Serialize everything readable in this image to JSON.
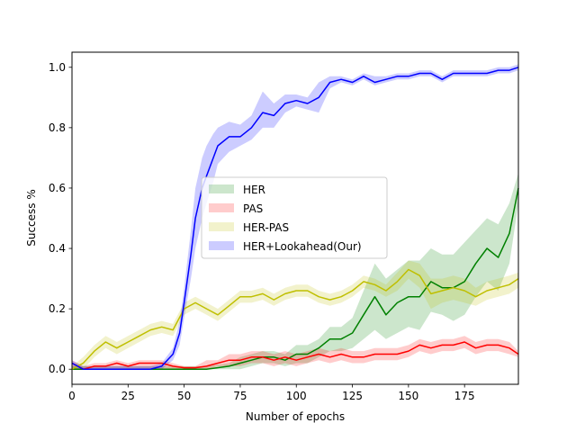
{
  "chart_data": {
    "type": "line",
    "title": "",
    "xlabel": "Number of epochs",
    "ylabel": "Success %",
    "xlim": [
      0,
      199
    ],
    "ylim": [
      -0.05,
      1.05
    ],
    "xticks": [
      0,
      25,
      50,
      75,
      100,
      125,
      150,
      175
    ],
    "yticks": [
      0.0,
      0.2,
      0.4,
      0.6,
      0.8,
      1.0
    ],
    "xtick_labels": [
      "0",
      "25",
      "50",
      "75",
      "100",
      "125",
      "150",
      "175"
    ],
    "ytick_labels": [
      "0.0",
      "0.2",
      "0.4",
      "0.6",
      "0.8",
      "1.0"
    ],
    "grid": false,
    "legend_placement": "center",
    "series": [
      {
        "name": "HER",
        "color": "#008000",
        "x": [
          0,
          5,
          10,
          20,
          30,
          40,
          50,
          60,
          70,
          75,
          80,
          85,
          90,
          95,
          100,
          105,
          110,
          115,
          120,
          125,
          130,
          135,
          140,
          145,
          150,
          155,
          160,
          165,
          170,
          175,
          180,
          185,
          190,
          195,
          199
        ],
        "values": [
          0.0,
          0.0,
          0.0,
          0.0,
          0.0,
          0.0,
          0.0,
          0.0,
          0.01,
          0.02,
          0.03,
          0.04,
          0.04,
          0.03,
          0.05,
          0.05,
          0.07,
          0.1,
          0.1,
          0.12,
          0.18,
          0.24,
          0.18,
          0.22,
          0.24,
          0.24,
          0.29,
          0.27,
          0.27,
          0.29,
          0.35,
          0.4,
          0.37,
          0.45,
          0.6
        ],
        "lower": [
          0.0,
          0.0,
          0.0,
          0.0,
          0.0,
          0.0,
          0.0,
          0.0,
          0.0,
          0.0,
          0.01,
          0.02,
          0.02,
          0.01,
          0.02,
          0.02,
          0.04,
          0.06,
          0.06,
          0.07,
          0.1,
          0.13,
          0.1,
          0.12,
          0.14,
          0.13,
          0.19,
          0.18,
          0.16,
          0.18,
          0.24,
          0.29,
          0.26,
          0.35,
          0.55
        ],
        "upper": [
          0.01,
          0.01,
          0.01,
          0.01,
          0.01,
          0.01,
          0.01,
          0.01,
          0.02,
          0.04,
          0.05,
          0.06,
          0.06,
          0.05,
          0.08,
          0.08,
          0.1,
          0.14,
          0.14,
          0.17,
          0.26,
          0.35,
          0.3,
          0.33,
          0.36,
          0.36,
          0.4,
          0.38,
          0.38,
          0.42,
          0.46,
          0.5,
          0.48,
          0.55,
          0.65
        ]
      },
      {
        "name": "PAS",
        "color": "#ff0000",
        "x": [
          0,
          5,
          10,
          15,
          20,
          25,
          30,
          35,
          40,
          45,
          50,
          55,
          60,
          65,
          70,
          75,
          80,
          85,
          90,
          95,
          100,
          105,
          110,
          115,
          120,
          125,
          130,
          135,
          140,
          145,
          150,
          155,
          160,
          165,
          170,
          175,
          180,
          185,
          190,
          195,
          199
        ],
        "values": [
          0.02,
          0.0,
          0.01,
          0.01,
          0.02,
          0.01,
          0.02,
          0.02,
          0.02,
          0.01,
          0.005,
          0.005,
          0.01,
          0.02,
          0.03,
          0.03,
          0.04,
          0.04,
          0.03,
          0.04,
          0.03,
          0.04,
          0.05,
          0.04,
          0.05,
          0.04,
          0.04,
          0.05,
          0.05,
          0.05,
          0.06,
          0.08,
          0.07,
          0.08,
          0.08,
          0.09,
          0.07,
          0.08,
          0.08,
          0.07,
          0.05
        ],
        "lower": [
          0.0,
          0.0,
          0.0,
          0.0,
          0.0,
          0.0,
          0.0,
          0.0,
          0.0,
          0.0,
          0.0,
          0.0,
          0.0,
          0.01,
          0.01,
          0.01,
          0.02,
          0.02,
          0.01,
          0.02,
          0.01,
          0.02,
          0.03,
          0.02,
          0.03,
          0.02,
          0.02,
          0.03,
          0.03,
          0.03,
          0.04,
          0.06,
          0.05,
          0.06,
          0.06,
          0.07,
          0.05,
          0.06,
          0.06,
          0.05,
          0.04
        ],
        "upper": [
          0.03,
          0.01,
          0.02,
          0.02,
          0.03,
          0.02,
          0.03,
          0.03,
          0.03,
          0.02,
          0.01,
          0.01,
          0.03,
          0.03,
          0.05,
          0.05,
          0.06,
          0.06,
          0.05,
          0.06,
          0.05,
          0.06,
          0.07,
          0.06,
          0.07,
          0.06,
          0.06,
          0.07,
          0.07,
          0.07,
          0.08,
          0.1,
          0.09,
          0.1,
          0.1,
          0.11,
          0.09,
          0.1,
          0.1,
          0.09,
          0.06
        ]
      },
      {
        "name": "HER-PAS",
        "color": "#bfbf00",
        "x": [
          0,
          5,
          10,
          15,
          20,
          25,
          30,
          35,
          40,
          45,
          50,
          55,
          60,
          65,
          70,
          75,
          80,
          85,
          90,
          95,
          100,
          105,
          110,
          115,
          120,
          125,
          130,
          135,
          140,
          145,
          150,
          155,
          160,
          165,
          170,
          175,
          180,
          185,
          190,
          195,
          199
        ],
        "values": [
          0.0,
          0.02,
          0.06,
          0.09,
          0.07,
          0.09,
          0.11,
          0.13,
          0.14,
          0.13,
          0.2,
          0.22,
          0.2,
          0.18,
          0.21,
          0.24,
          0.24,
          0.25,
          0.23,
          0.25,
          0.26,
          0.26,
          0.24,
          0.23,
          0.24,
          0.26,
          0.29,
          0.28,
          0.26,
          0.29,
          0.33,
          0.31,
          0.25,
          0.26,
          0.27,
          0.26,
          0.24,
          0.26,
          0.27,
          0.28,
          0.3
        ],
        "lower": [
          0.0,
          0.0,
          0.04,
          0.07,
          0.05,
          0.07,
          0.09,
          0.11,
          0.12,
          0.11,
          0.18,
          0.2,
          0.18,
          0.16,
          0.19,
          0.22,
          0.22,
          0.23,
          0.21,
          0.23,
          0.24,
          0.24,
          0.22,
          0.21,
          0.22,
          0.24,
          0.27,
          0.26,
          0.24,
          0.26,
          0.3,
          0.27,
          0.2,
          0.22,
          0.23,
          0.22,
          0.21,
          0.23,
          0.24,
          0.25,
          0.27
        ],
        "upper": [
          0.01,
          0.04,
          0.08,
          0.11,
          0.09,
          0.11,
          0.13,
          0.15,
          0.16,
          0.15,
          0.22,
          0.24,
          0.22,
          0.2,
          0.23,
          0.26,
          0.26,
          0.27,
          0.25,
          0.27,
          0.28,
          0.28,
          0.26,
          0.25,
          0.26,
          0.28,
          0.31,
          0.3,
          0.28,
          0.32,
          0.36,
          0.35,
          0.3,
          0.3,
          0.31,
          0.3,
          0.27,
          0.29,
          0.3,
          0.31,
          0.32
        ]
      },
      {
        "name": "HER+Lookahead(Our)",
        "color": "#0000ff",
        "x": [
          0,
          5,
          10,
          20,
          30,
          35,
          40,
          45,
          48,
          50,
          53,
          55,
          58,
          60,
          63,
          65,
          70,
          75,
          80,
          85,
          90,
          95,
          100,
          105,
          110,
          115,
          120,
          125,
          130,
          135,
          140,
          145,
          150,
          155,
          160,
          165,
          170,
          175,
          180,
          185,
          190,
          195,
          199
        ],
        "values": [
          0.02,
          0.0,
          0.0,
          0.0,
          0.0,
          0.0,
          0.01,
          0.05,
          0.12,
          0.22,
          0.38,
          0.5,
          0.6,
          0.64,
          0.7,
          0.74,
          0.77,
          0.77,
          0.8,
          0.85,
          0.84,
          0.88,
          0.89,
          0.88,
          0.9,
          0.95,
          0.96,
          0.95,
          0.97,
          0.95,
          0.96,
          0.97,
          0.97,
          0.98,
          0.98,
          0.96,
          0.98,
          0.98,
          0.98,
          0.98,
          0.99,
          0.99,
          1.0
        ],
        "lower": [
          0.0,
          0.0,
          0.0,
          0.0,
          0.0,
          0.0,
          0.0,
          0.03,
          0.08,
          0.17,
          0.3,
          0.4,
          0.5,
          0.55,
          0.62,
          0.68,
          0.72,
          0.74,
          0.76,
          0.8,
          0.8,
          0.85,
          0.87,
          0.86,
          0.85,
          0.93,
          0.95,
          0.94,
          0.96,
          0.94,
          0.95,
          0.96,
          0.96,
          0.97,
          0.97,
          0.95,
          0.97,
          0.97,
          0.97,
          0.97,
          0.98,
          0.98,
          0.99
        ],
        "upper": [
          0.03,
          0.01,
          0.01,
          0.01,
          0.01,
          0.01,
          0.02,
          0.07,
          0.16,
          0.27,
          0.46,
          0.6,
          0.7,
          0.74,
          0.78,
          0.8,
          0.82,
          0.81,
          0.84,
          0.92,
          0.88,
          0.91,
          0.91,
          0.9,
          0.95,
          0.97,
          0.97,
          0.96,
          0.98,
          0.97,
          0.97,
          0.98,
          0.98,
          0.99,
          0.99,
          0.97,
          0.99,
          0.99,
          0.99,
          0.99,
          1.0,
          1.0,
          1.01
        ]
      }
    ],
    "legend": [
      {
        "label": "HER",
        "swatch_color": "#008000"
      },
      {
        "label": "PAS",
        "swatch_color": "#ff0000"
      },
      {
        "label": "HER-PAS",
        "swatch_color": "#bfbf00"
      },
      {
        "label": "HER+Lookahead(Our)",
        "swatch_color": "#0000ff"
      }
    ]
  }
}
